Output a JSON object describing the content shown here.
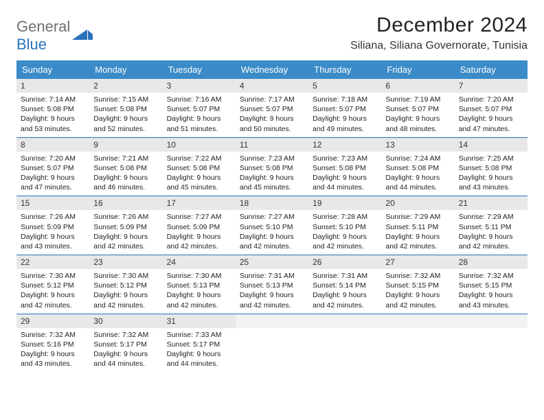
{
  "brand": {
    "part1": "General",
    "part2": "Blue"
  },
  "title": "December 2024",
  "location": "Siliana, Siliana Governorate, Tunisia",
  "colors": {
    "header_bg": "#3b8bc8",
    "week_border": "#2a72ba",
    "daynum_bg": "#e8e8e8",
    "text": "#222222"
  },
  "weekdays": [
    "Sunday",
    "Monday",
    "Tuesday",
    "Wednesday",
    "Thursday",
    "Friday",
    "Saturday"
  ],
  "weeks": [
    [
      {
        "n": "1",
        "sr": "7:14 AM",
        "ss": "5:08 PM",
        "dl": "9 hours and 53 minutes."
      },
      {
        "n": "2",
        "sr": "7:15 AM",
        "ss": "5:08 PM",
        "dl": "9 hours and 52 minutes."
      },
      {
        "n": "3",
        "sr": "7:16 AM",
        "ss": "5:07 PM",
        "dl": "9 hours and 51 minutes."
      },
      {
        "n": "4",
        "sr": "7:17 AM",
        "ss": "5:07 PM",
        "dl": "9 hours and 50 minutes."
      },
      {
        "n": "5",
        "sr": "7:18 AM",
        "ss": "5:07 PM",
        "dl": "9 hours and 49 minutes."
      },
      {
        "n": "6",
        "sr": "7:19 AM",
        "ss": "5:07 PM",
        "dl": "9 hours and 48 minutes."
      },
      {
        "n": "7",
        "sr": "7:20 AM",
        "ss": "5:07 PM",
        "dl": "9 hours and 47 minutes."
      }
    ],
    [
      {
        "n": "8",
        "sr": "7:20 AM",
        "ss": "5:07 PM",
        "dl": "9 hours and 47 minutes."
      },
      {
        "n": "9",
        "sr": "7:21 AM",
        "ss": "5:08 PM",
        "dl": "9 hours and 46 minutes."
      },
      {
        "n": "10",
        "sr": "7:22 AM",
        "ss": "5:08 PM",
        "dl": "9 hours and 45 minutes."
      },
      {
        "n": "11",
        "sr": "7:23 AM",
        "ss": "5:08 PM",
        "dl": "9 hours and 45 minutes."
      },
      {
        "n": "12",
        "sr": "7:23 AM",
        "ss": "5:08 PM",
        "dl": "9 hours and 44 minutes."
      },
      {
        "n": "13",
        "sr": "7:24 AM",
        "ss": "5:08 PM",
        "dl": "9 hours and 44 minutes."
      },
      {
        "n": "14",
        "sr": "7:25 AM",
        "ss": "5:08 PM",
        "dl": "9 hours and 43 minutes."
      }
    ],
    [
      {
        "n": "15",
        "sr": "7:26 AM",
        "ss": "5:09 PM",
        "dl": "9 hours and 43 minutes."
      },
      {
        "n": "16",
        "sr": "7:26 AM",
        "ss": "5:09 PM",
        "dl": "9 hours and 42 minutes."
      },
      {
        "n": "17",
        "sr": "7:27 AM",
        "ss": "5:09 PM",
        "dl": "9 hours and 42 minutes."
      },
      {
        "n": "18",
        "sr": "7:27 AM",
        "ss": "5:10 PM",
        "dl": "9 hours and 42 minutes."
      },
      {
        "n": "19",
        "sr": "7:28 AM",
        "ss": "5:10 PM",
        "dl": "9 hours and 42 minutes."
      },
      {
        "n": "20",
        "sr": "7:29 AM",
        "ss": "5:11 PM",
        "dl": "9 hours and 42 minutes."
      },
      {
        "n": "21",
        "sr": "7:29 AM",
        "ss": "5:11 PM",
        "dl": "9 hours and 42 minutes."
      }
    ],
    [
      {
        "n": "22",
        "sr": "7:30 AM",
        "ss": "5:12 PM",
        "dl": "9 hours and 42 minutes."
      },
      {
        "n": "23",
        "sr": "7:30 AM",
        "ss": "5:12 PM",
        "dl": "9 hours and 42 minutes."
      },
      {
        "n": "24",
        "sr": "7:30 AM",
        "ss": "5:13 PM",
        "dl": "9 hours and 42 minutes."
      },
      {
        "n": "25",
        "sr": "7:31 AM",
        "ss": "5:13 PM",
        "dl": "9 hours and 42 minutes."
      },
      {
        "n": "26",
        "sr": "7:31 AM",
        "ss": "5:14 PM",
        "dl": "9 hours and 42 minutes."
      },
      {
        "n": "27",
        "sr": "7:32 AM",
        "ss": "5:15 PM",
        "dl": "9 hours and 42 minutes."
      },
      {
        "n": "28",
        "sr": "7:32 AM",
        "ss": "5:15 PM",
        "dl": "9 hours and 43 minutes."
      }
    ],
    [
      {
        "n": "29",
        "sr": "7:32 AM",
        "ss": "5:16 PM",
        "dl": "9 hours and 43 minutes."
      },
      {
        "n": "30",
        "sr": "7:32 AM",
        "ss": "5:17 PM",
        "dl": "9 hours and 44 minutes."
      },
      {
        "n": "31",
        "sr": "7:33 AM",
        "ss": "5:17 PM",
        "dl": "9 hours and 44 minutes."
      },
      null,
      null,
      null,
      null
    ]
  ],
  "labels": {
    "sunrise": "Sunrise:",
    "sunset": "Sunset:",
    "daylight": "Daylight:"
  }
}
